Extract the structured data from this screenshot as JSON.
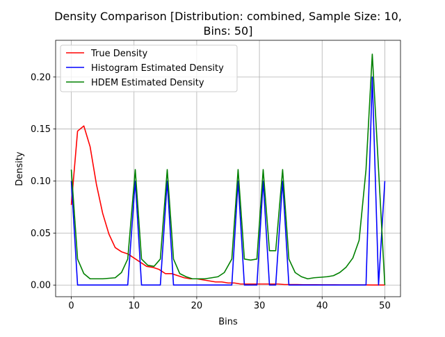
{
  "chart_data": {
    "type": "line",
    "title_lines": [
      "Density Comparison [Distribution: combined, Sample Size: 10,",
      "Bins: 50]"
    ],
    "xlabel": "Bins",
    "ylabel": "Density",
    "xlim": [
      -2.5,
      52.5
    ],
    "ylim": [
      -0.0112,
      0.2353
    ],
    "xticks": [
      0,
      10,
      20,
      30,
      40,
      50
    ],
    "xtick_labels": [
      "0",
      "10",
      "20",
      "30",
      "40",
      "50"
    ],
    "yticks": [
      0.0,
      0.05,
      0.1,
      0.15,
      0.2
    ],
    "ytick_labels": [
      "0.00",
      "0.05",
      "0.10",
      "0.15",
      "0.20"
    ],
    "grid": true,
    "legend_position": "top-left",
    "series": [
      {
        "name": "True Density",
        "color": "#ff0000",
        "x": [
          0,
          1,
          2,
          3,
          4,
          5,
          6,
          7,
          8,
          9,
          10,
          11,
          12,
          13,
          14,
          15,
          16,
          17,
          18,
          19,
          20,
          21,
          22,
          23,
          24,
          25,
          26,
          27,
          28,
          29,
          30,
          31,
          32,
          33,
          34,
          35,
          36,
          37,
          38,
          39,
          40,
          41,
          42,
          43,
          44,
          45,
          46,
          47,
          48,
          49,
          50
        ],
        "y": [
          0.077,
          0.148,
          0.153,
          0.133,
          0.097,
          0.069,
          0.049,
          0.036,
          0.032,
          0.03,
          0.026,
          0.022,
          0.018,
          0.017,
          0.015,
          0.011,
          0.011,
          0.009,
          0.007,
          0.006,
          0.006,
          0.005,
          0.004,
          0.003,
          0.003,
          0.002,
          0.002,
          0.001,
          0.001,
          0.001,
          0.001,
          0.001,
          0.001,
          0.001,
          0.0005,
          0.0005,
          0.0005,
          0.0003,
          0.0003,
          0.0003,
          0.0002,
          0.0002,
          0.0002,
          0.0001,
          0.0001,
          0.0001,
          0.0001,
          0.0001,
          0.0,
          0.0,
          0.0
        ]
      },
      {
        "name": "Histogram Estimated Density",
        "color": "#0000ff",
        "x": [
          0,
          1,
          9,
          10.2,
          11.2,
          14.2,
          15.3,
          16.3,
          25.6,
          26.6,
          27.6,
          29.6,
          30.6,
          31.6,
          32.6,
          33.7,
          34.7,
          47,
          48,
          49,
          50
        ],
        "y": [
          0.1,
          0.0,
          0.0,
          0.1,
          0.0,
          0.0,
          0.1,
          0.0,
          0.0,
          0.1,
          0.0,
          0.0,
          0.1,
          0.0,
          0.0,
          0.1,
          0.0,
          0.0,
          0.2,
          0.0,
          0.1
        ]
      },
      {
        "name": "HDEM Estimated Density",
        "color": "#008000",
        "x": [
          0,
          1,
          2,
          3,
          4,
          5,
          6,
          7,
          8,
          9,
          10.2,
          11.2,
          12.2,
          13.2,
          14.2,
          15.3,
          16.3,
          17.3,
          18.3,
          19.3,
          20.3,
          21.3,
          22.4,
          23.4,
          24.4,
          25.6,
          26.6,
          27.6,
          28.6,
          29.6,
          30.6,
          31.6,
          32.6,
          33.7,
          34.7,
          35.7,
          36.7,
          37.7,
          38.7,
          39.8,
          40.8,
          41.8,
          42.8,
          43.8,
          44.9,
          45.9,
          47,
          48,
          49,
          50
        ],
        "y": [
          0.111,
          0.025,
          0.011,
          0.006,
          0.006,
          0.006,
          0.0065,
          0.007,
          0.012,
          0.025,
          0.111,
          0.025,
          0.019,
          0.018,
          0.025,
          0.111,
          0.025,
          0.011,
          0.008,
          0.006,
          0.006,
          0.006,
          0.007,
          0.008,
          0.012,
          0.025,
          0.111,
          0.025,
          0.024,
          0.025,
          0.111,
          0.033,
          0.033,
          0.111,
          0.025,
          0.012,
          0.008,
          0.006,
          0.007,
          0.0075,
          0.008,
          0.009,
          0.012,
          0.017,
          0.026,
          0.043,
          0.111,
          0.222,
          0.111,
          0.0
        ]
      }
    ]
  }
}
